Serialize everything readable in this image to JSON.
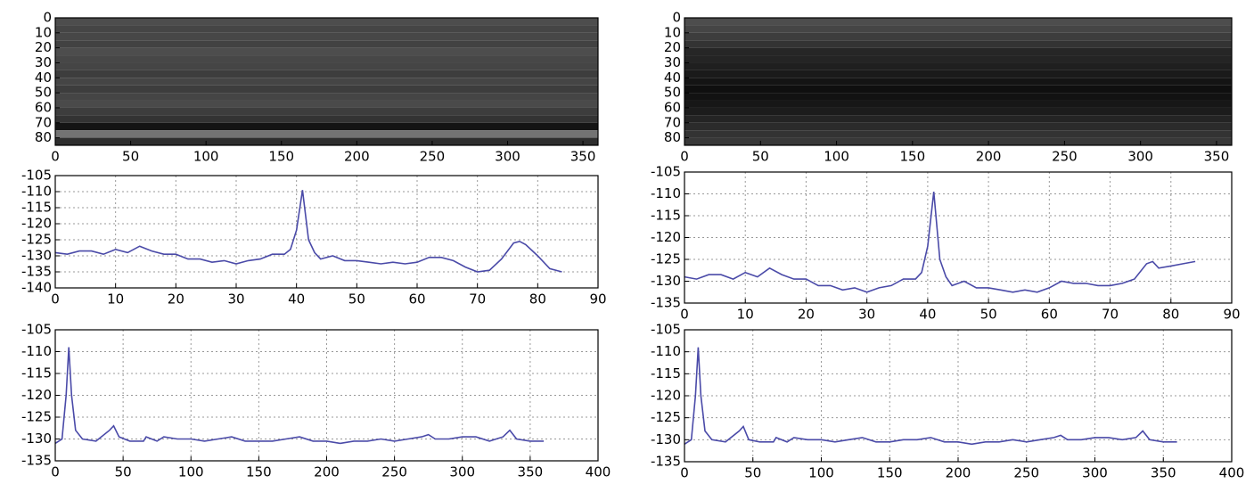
{
  "chart_data": [
    {
      "type": "heatmap",
      "y": [
        0,
        5,
        10,
        15,
        20,
        25,
        30,
        35,
        40,
        45,
        50,
        55,
        60,
        65,
        70,
        75,
        80
      ],
      "values": [
        0.3,
        0.27,
        0.28,
        0.26,
        0.3,
        0.28,
        0.27,
        0.24,
        0.27,
        0.24,
        0.27,
        0.29,
        0.24,
        0.2,
        0.08,
        0.45,
        0.18
      ],
      "xlim": [
        0,
        360
      ],
      "ylim": [
        85,
        0
      ],
      "xticks": [
        0,
        50,
        100,
        150,
        200,
        250,
        300,
        350
      ],
      "yticks": [
        0,
        10,
        20,
        30,
        40,
        50,
        60,
        70,
        80
      ],
      "grid": false
    },
    {
      "type": "line",
      "x": [
        0,
        2,
        4,
        6,
        8,
        10,
        12,
        14,
        16,
        18,
        20,
        22,
        24,
        26,
        28,
        30,
        32,
        34,
        36,
        38,
        39,
        40,
        41,
        42,
        43,
        44,
        46,
        48,
        50,
        52,
        54,
        56,
        58,
        60,
        62,
        64,
        66,
        68,
        70,
        72,
        74,
        76,
        77,
        78,
        80,
        82,
        84
      ],
      "values": [
        -129,
        -129.5,
        -128.5,
        -128.5,
        -129.5,
        -128,
        -129,
        -127,
        -128.5,
        -129.5,
        -129.5,
        -131,
        -131,
        -132,
        -131.5,
        -132.5,
        -131.5,
        -131,
        -129.5,
        -129.5,
        -128,
        -122,
        -109.5,
        -125,
        -129,
        -131,
        -130,
        -131.5,
        -131.5,
        -132,
        -132.5,
        -132,
        -132.5,
        -132,
        -130.5,
        -130.5,
        -131.5,
        -133.5,
        -135,
        -134.5,
        -131,
        -126,
        -125.5,
        -126.5,
        -130,
        -134,
        -135
      ],
      "color": "#4a4aa8",
      "xlim": [
        0,
        90
      ],
      "ylim": [
        -140,
        -105
      ],
      "xticks": [
        0,
        10,
        20,
        30,
        40,
        50,
        60,
        70,
        80,
        90
      ],
      "yticks": [
        -140,
        -135,
        -130,
        -125,
        -120,
        -115,
        -110,
        -105
      ],
      "grid": true
    },
    {
      "type": "line",
      "x": [
        0,
        5,
        8,
        10,
        12,
        15,
        20,
        30,
        40,
        43,
        47,
        55,
        65,
        67,
        75,
        80,
        90,
        100,
        110,
        120,
        130,
        140,
        150,
        160,
        170,
        180,
        190,
        200,
        210,
        220,
        230,
        240,
        250,
        260,
        270,
        275,
        280,
        290,
        300,
        310,
        320,
        330,
        335,
        340,
        350,
        360
      ],
      "values": [
        -131,
        -130,
        -120,
        -109,
        -120,
        -128,
        -130,
        -130.5,
        -128,
        -127,
        -129.5,
        -130.5,
        -130.5,
        -129.5,
        -130.5,
        -129.5,
        -130,
        -130,
        -130.5,
        -130,
        -129.5,
        -130.5,
        -130.5,
        -130.5,
        -130,
        -129.5,
        -130.5,
        -130.5,
        -131,
        -130.5,
        -130.5,
        -130,
        -130.5,
        -130,
        -129.5,
        -129,
        -130,
        -130,
        -129.5,
        -129.5,
        -130.5,
        -129.5,
        -128,
        -130,
        -130.5,
        -130.5
      ],
      "color": "#4a4aa8",
      "xlim": [
        0,
        400
      ],
      "ylim": [
        -135,
        -105
      ],
      "xticks": [
        0,
        50,
        100,
        150,
        200,
        250,
        300,
        350,
        400
      ],
      "yticks": [
        -135,
        -130,
        -125,
        -120,
        -115,
        -110,
        -105
      ],
      "grid": true
    },
    {
      "type": "heatmap",
      "y": [
        0,
        5,
        10,
        15,
        20,
        25,
        30,
        35,
        40,
        45,
        50,
        55,
        60,
        65,
        70,
        75,
        80
      ],
      "values": [
        0.3,
        0.27,
        0.24,
        0.2,
        0.15,
        0.14,
        0.12,
        0.1,
        0.08,
        0.06,
        0.07,
        0.09,
        0.11,
        0.14,
        0.17,
        0.2,
        0.22
      ],
      "xlim": [
        0,
        360
      ],
      "ylim": [
        85,
        0
      ],
      "xticks": [
        0,
        50,
        100,
        150,
        200,
        250,
        300,
        350
      ],
      "yticks": [
        0,
        10,
        20,
        30,
        40,
        50,
        60,
        70,
        80
      ],
      "grid": false
    },
    {
      "type": "line",
      "x": [
        0,
        2,
        4,
        6,
        8,
        10,
        12,
        14,
        16,
        18,
        20,
        22,
        24,
        26,
        28,
        30,
        32,
        34,
        36,
        38,
        39,
        40,
        41,
        42,
        43,
        44,
        46,
        48,
        50,
        52,
        54,
        56,
        58,
        60,
        62,
        64,
        66,
        68,
        70,
        72,
        74,
        76,
        77,
        78,
        80,
        82,
        84
      ],
      "values": [
        -129,
        -129.5,
        -128.5,
        -128.5,
        -129.5,
        -128,
        -129,
        -127,
        -128.5,
        -129.5,
        -129.5,
        -131,
        -131,
        -132,
        -131.5,
        -132.5,
        -131.5,
        -131,
        -129.5,
        -129.5,
        -128,
        -122,
        -109.5,
        -125,
        -129,
        -131,
        -130,
        -131.5,
        -131.5,
        -132,
        -132.5,
        -132,
        -132.5,
        -131.5,
        -130,
        -130.5,
        -130.5,
        -131,
        -131,
        -130.5,
        -129.5,
        -126,
        -125.5,
        -127,
        -126.5,
        -126,
        -125.5
      ],
      "color": "#4a4aa8",
      "xlim": [
        0,
        90
      ],
      "ylim": [
        -135,
        -105
      ],
      "xticks": [
        0,
        10,
        20,
        30,
        40,
        50,
        60,
        70,
        80,
        90
      ],
      "yticks": [
        -135,
        -130,
        -125,
        -120,
        -115,
        -110,
        -105
      ],
      "grid": true
    },
    {
      "type": "line",
      "x": [
        0,
        5,
        8,
        10,
        12,
        15,
        20,
        30,
        40,
        43,
        47,
        55,
        65,
        67,
        75,
        80,
        90,
        100,
        110,
        120,
        130,
        140,
        150,
        160,
        170,
        180,
        190,
        200,
        210,
        220,
        230,
        240,
        250,
        260,
        270,
        275,
        280,
        290,
        300,
        310,
        320,
        330,
        335,
        340,
        350,
        360
      ],
      "values": [
        -131,
        -130,
        -120,
        -109,
        -120,
        -128,
        -130,
        -130.5,
        -128,
        -127,
        -130,
        -130.5,
        -130.5,
        -129.5,
        -130.5,
        -129.5,
        -130,
        -130,
        -130.5,
        -130,
        -129.5,
        -130.5,
        -130.5,
        -130,
        -130,
        -129.5,
        -130.5,
        -130.5,
        -131,
        -130.5,
        -130.5,
        -130,
        -130.5,
        -130,
        -129.5,
        -129,
        -130,
        -130,
        -129.5,
        -129.5,
        -130,
        -129.5,
        -128,
        -130,
        -130.5,
        -130.5
      ],
      "color": "#4a4aa8",
      "xlim": [
        0,
        400
      ],
      "ylim": [
        -135,
        -105
      ],
      "xticks": [
        0,
        50,
        100,
        150,
        200,
        250,
        300,
        350,
        400
      ],
      "yticks": [
        -135,
        -130,
        -125,
        -120,
        -115,
        -110,
        -105
      ],
      "grid": true
    }
  ]
}
